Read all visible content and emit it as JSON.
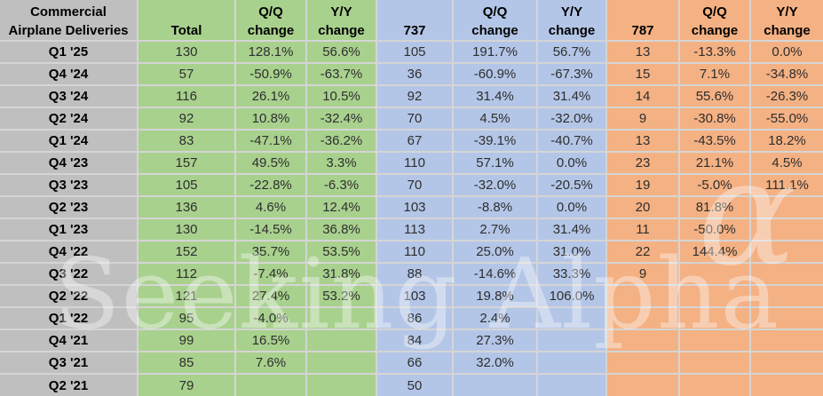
{
  "title": "Commercial Airplane Deliveries",
  "watermark": {
    "text": "Seeking Alpha",
    "alpha": "α"
  },
  "colors": {
    "label_column": "#bfbfbf",
    "total_group": "#a9d18e",
    "b737_group": "#b4c6e7",
    "b787_group": "#f4b183",
    "gridline": "#d5d5d5",
    "header_text": "#000000",
    "value_text": "#2e2e2e"
  },
  "chart_data": {
    "type": "table",
    "title": "Commercial Airplane Deliveries",
    "column_groups": [
      "quarter",
      "total",
      "737",
      "787"
    ],
    "columns": [
      {
        "id": "quarter",
        "group": "gray",
        "lines": [
          "Commercial",
          "Airplane Deliveries"
        ],
        "width": 155
      },
      {
        "id": "total",
        "group": "green",
        "lines": [
          "Total"
        ],
        "width": 110
      },
      {
        "id": "total-qq",
        "group": "green",
        "lines": [
          "Q/Q",
          "change"
        ],
        "width": 80
      },
      {
        "id": "total-yy",
        "group": "green",
        "lines": [
          "Y/Y",
          "change"
        ],
        "width": 79
      },
      {
        "id": "737",
        "group": "blue",
        "lines": [
          "737"
        ],
        "width": 86
      },
      {
        "id": "737-qq",
        "group": "blue",
        "lines": [
          "Q/Q",
          "change"
        ],
        "width": 95
      },
      {
        "id": "737-yy",
        "group": "blue",
        "lines": [
          "Y/Y",
          "change"
        ],
        "width": 78
      },
      {
        "id": "787",
        "group": "orange",
        "lines": [
          "787"
        ],
        "width": 82
      },
      {
        "id": "787-qq",
        "group": "orange",
        "lines": [
          "Q/Q",
          "change"
        ],
        "width": 80
      },
      {
        "id": "787-yy",
        "group": "orange",
        "lines": [
          "Y/Y",
          "change"
        ],
        "width": 82
      }
    ],
    "rows": [
      [
        "Q1 '25",
        "130",
        "128.1%",
        "56.6%",
        "105",
        "191.7%",
        "56.7%",
        "13",
        "-13.3%",
        "0.0%"
      ],
      [
        "Q4 '24",
        "57",
        "-50.9%",
        "-63.7%",
        "36",
        "-60.9%",
        "-67.3%",
        "15",
        "7.1%",
        "-34.8%"
      ],
      [
        "Q3 '24",
        "116",
        "26.1%",
        "10.5%",
        "92",
        "31.4%",
        "31.4%",
        "14",
        "55.6%",
        "-26.3%"
      ],
      [
        "Q2 '24",
        "92",
        "10.8%",
        "-32.4%",
        "70",
        "4.5%",
        "-32.0%",
        "9",
        "-30.8%",
        "-55.0%"
      ],
      [
        "Q1 '24",
        "83",
        "-47.1%",
        "-36.2%",
        "67",
        "-39.1%",
        "-40.7%",
        "13",
        "-43.5%",
        "18.2%"
      ],
      [
        "Q4 '23",
        "157",
        "49.5%",
        "3.3%",
        "110",
        "57.1%",
        "0.0%",
        "23",
        "21.1%",
        "4.5%"
      ],
      [
        "Q3 '23",
        "105",
        "-22.8%",
        "-6.3%",
        "70",
        "-32.0%",
        "-20.5%",
        "19",
        "-5.0%",
        "111.1%"
      ],
      [
        "Q2 '23",
        "136",
        "4.6%",
        "12.4%",
        "103",
        "-8.8%",
        "0.0%",
        "20",
        "81.8%",
        ""
      ],
      [
        "Q1 '23",
        "130",
        "-14.5%",
        "36.8%",
        "113",
        "2.7%",
        "31.4%",
        "11",
        "-50.0%",
        ""
      ],
      [
        "Q4 '22",
        "152",
        "35.7%",
        "53.5%",
        "110",
        "25.0%",
        "31.0%",
        "22",
        "144.4%",
        ""
      ],
      [
        "Q3 '22",
        "112",
        "-7.4%",
        "31.8%",
        "88",
        "-14.6%",
        "33.3%",
        "9",
        "",
        ""
      ],
      [
        "Q2 '22",
        "121",
        "27.4%",
        "53.2%",
        "103",
        "19.8%",
        "106.0%",
        "",
        "",
        ""
      ],
      [
        "Q1 '22",
        "95",
        "-4.0%",
        "",
        "86",
        "2.4%",
        "",
        "",
        "",
        ""
      ],
      [
        "Q4 '21",
        "99",
        "16.5%",
        "",
        "84",
        "27.3%",
        "",
        "",
        "",
        ""
      ],
      [
        "Q3 '21",
        "85",
        "7.6%",
        "",
        "66",
        "32.0%",
        "",
        "",
        "",
        ""
      ],
      [
        "Q2 '21",
        "79",
        "",
        "",
        "50",
        "",
        "",
        "",
        "",
        ""
      ]
    ]
  }
}
